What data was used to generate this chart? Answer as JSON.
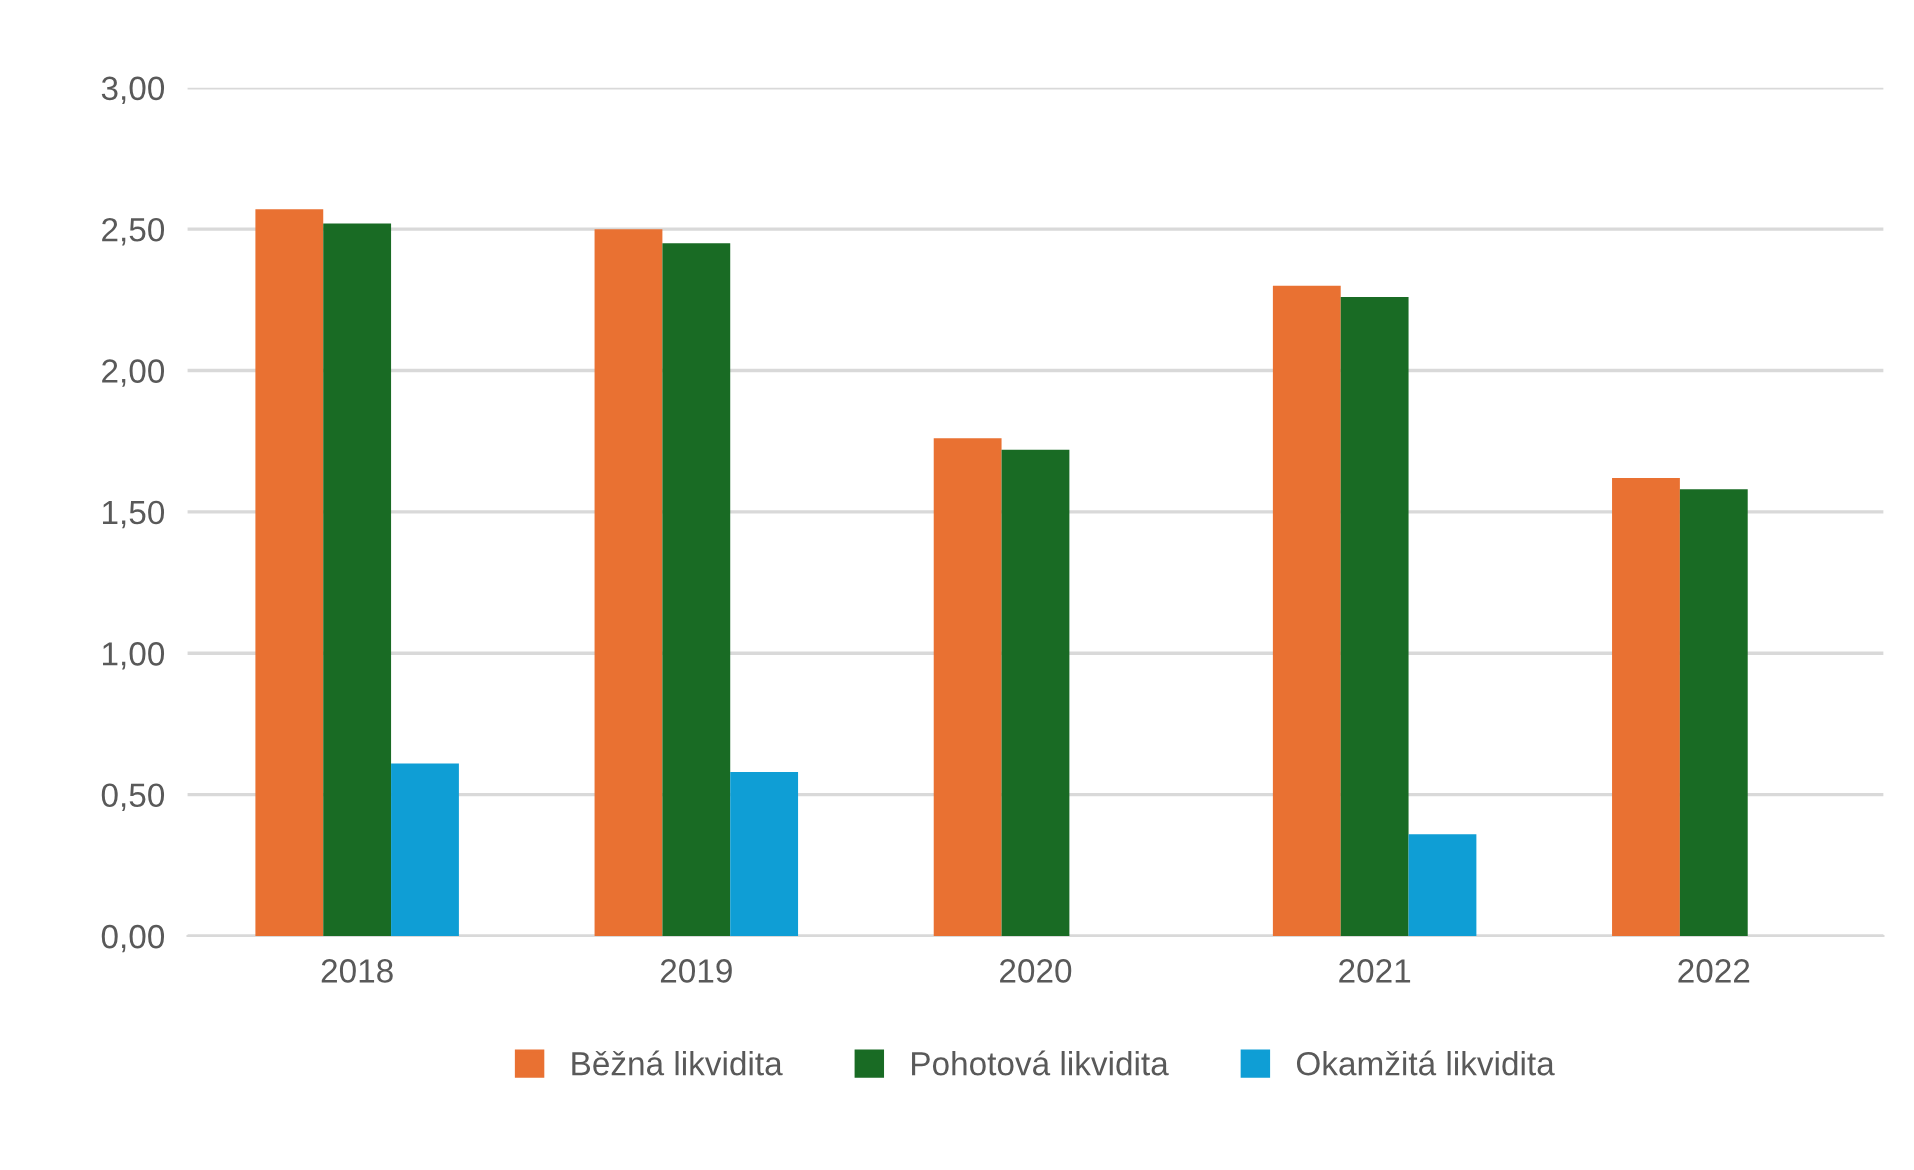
{
  "chart_data": {
    "type": "bar",
    "categories": [
      "2018",
      "2019",
      "2020",
      "2021",
      "2022"
    ],
    "series": [
      {
        "name": "Běžná likvidita",
        "color": "#e97132",
        "values": [
          2.57,
          2.5,
          1.76,
          2.3,
          1.62
        ]
      },
      {
        "name": "Pohotová likvidita",
        "color": "#196b24",
        "values": [
          2.52,
          2.45,
          1.72,
          2.26,
          1.58
        ]
      },
      {
        "name": "Okamžitá likvidita",
        "color": "#0f9ed5",
        "values": [
          0.61,
          0.58,
          null,
          0.36,
          null
        ]
      }
    ],
    "ylim": [
      0,
      3
    ],
    "yticks": [
      {
        "value": 0,
        "label": "0,00"
      },
      {
        "value": 0.5,
        "label": "0,50"
      },
      {
        "value": 1,
        "label": "1,00"
      },
      {
        "value": 1.5,
        "label": "1,50"
      },
      {
        "value": 2,
        "label": "2,00"
      },
      {
        "value": 2.5,
        "label": "2,50"
      },
      {
        "value": 3,
        "label": "3,00"
      }
    ],
    "grid": "y",
    "legend": "bottom"
  }
}
